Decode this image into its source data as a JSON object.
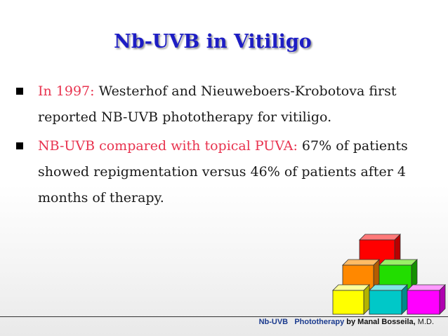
{
  "slide": {
    "title": "Nb-UVB in Vitiligo",
    "bullets": [
      {
        "highlight": "In 1997:",
        "text": " Westerhof and Nieuweboers-Krobotova first reported NB-UVB phototherapy for vitiligo."
      },
      {
        "highlight": "NB-UVB compared with topical PUVA:",
        "text": " 67% of patients showed repigmentation versus 46% of patients after 4 months of therapy."
      }
    ],
    "colors": {
      "title": "#1d1dc4",
      "highlight": "#e8334f",
      "cube_red": "#ff0000",
      "cube_orange": "#ff8800",
      "cube_green": "#22dd00",
      "cube_yellow": "#ffff00",
      "cube_teal": "#00c8c8",
      "cube_magenta": "#ff00ff"
    }
  },
  "footer": {
    "part1": "Nb-UVB",
    "part2": "Phototherapy",
    "part3": "by Manal Bosseila,",
    "part4": " M.D."
  }
}
